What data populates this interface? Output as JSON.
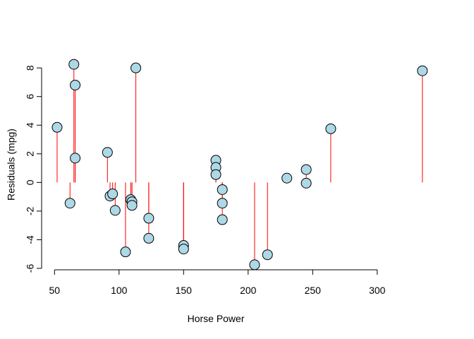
{
  "chart_data": {
    "type": "scatter",
    "title": "",
    "xlabel": "Horse Power",
    "ylabel": "Residuals (mpg)",
    "xlim": [
      40,
      340
    ],
    "ylim": [
      -6.1,
      8.6
    ],
    "x_ticks": [
      50,
      100,
      150,
      200,
      250,
      300
    ],
    "y_ticks": [
      -6,
      -4,
      -2,
      0,
      2,
      4,
      6,
      8
    ],
    "x_tick_labels": [
      "50",
      "100",
      "150",
      "200",
      "250",
      "300"
    ],
    "y_tick_labels": [
      "-6",
      "-4",
      "-2",
      "0",
      "2",
      "4",
      "6",
      "8"
    ],
    "grid": false,
    "residual_line_color": "#ff0000",
    "point_fill": "#add8e6",
    "point_stroke": "#000000",
    "points": [
      {
        "x": 52,
        "y": 3.85
      },
      {
        "x": 62,
        "y": -1.45
      },
      {
        "x": 65,
        "y": 8.25
      },
      {
        "x": 66,
        "y": 6.8
      },
      {
        "x": 66,
        "y": 1.7
      },
      {
        "x": 91,
        "y": 2.1
      },
      {
        "x": 93,
        "y": -0.95
      },
      {
        "x": 95,
        "y": -0.8
      },
      {
        "x": 97,
        "y": -1.95
      },
      {
        "x": 105,
        "y": -4.85
      },
      {
        "x": 109,
        "y": -1.2
      },
      {
        "x": 110,
        "y": -1.35
      },
      {
        "x": 110,
        "y": -1.6
      },
      {
        "x": 113,
        "y": 8.0
      },
      {
        "x": 123,
        "y": -2.5
      },
      {
        "x": 123,
        "y": -3.9
      },
      {
        "x": 150,
        "y": -4.4
      },
      {
        "x": 150,
        "y": -4.65
      },
      {
        "x": 175,
        "y": 1.55
      },
      {
        "x": 175,
        "y": 1.05
      },
      {
        "x": 175,
        "y": 0.55
      },
      {
        "x": 180,
        "y": -0.5
      },
      {
        "x": 180,
        "y": -1.45
      },
      {
        "x": 180,
        "y": -2.6
      },
      {
        "x": 205,
        "y": -5.75
      },
      {
        "x": 215,
        "y": -5.05
      },
      {
        "x": 230,
        "y": 0.3
      },
      {
        "x": 245,
        "y": 0.9
      },
      {
        "x": 245,
        "y": -0.05
      },
      {
        "x": 264,
        "y": 3.75
      },
      {
        "x": 335,
        "y": 7.8
      }
    ]
  }
}
